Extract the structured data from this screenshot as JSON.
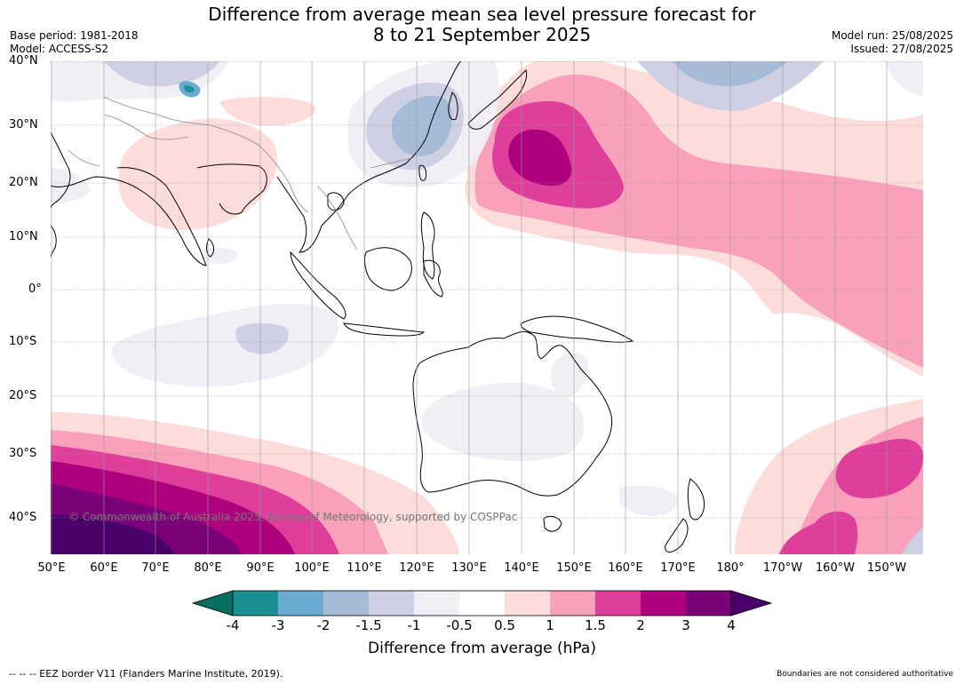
{
  "title": {
    "line1": "Difference from average mean sea level pressure forecast for",
    "line2": "8 to 21 September 2025"
  },
  "meta": {
    "base_period": "Base period: 1981-2018",
    "model": "Model: ACCESS-S2",
    "model_run": "Model run: 25/08/2025",
    "issued": "Issued: 27/08/2025"
  },
  "map": {
    "lat_labels": [
      "40°N",
      "30°N",
      "20°N",
      "10°N",
      "0°",
      "10°S",
      "20°S",
      "30°S",
      "40°S"
    ],
    "lon_labels": [
      "50°E",
      "60°E",
      "70°E",
      "80°E",
      "90°E",
      "100°E",
      "110°E",
      "120°E",
      "130°E",
      "140°E",
      "150°E",
      "160°E",
      "170°E",
      "180°",
      "170°W",
      "160°W",
      "150°W"
    ],
    "watermark": "© Commonwealth of Australia 2025, Bureau of Meteorology, supported by COSPPac"
  },
  "colorbar": {
    "title": "Difference from average (hPa)",
    "ticks": [
      "-4",
      "-3",
      "-2",
      "-1.5",
      "-1",
      "-0.5",
      "0.5",
      "1",
      "1.5",
      "2",
      "3",
      "4"
    ],
    "colors": [
      "#1a9092",
      "#6aabd1",
      "#a6bbd8",
      "#cfd0e4",
      "#f1eef5",
      "#ffffff",
      "#fddcdc",
      "#f9a1ba",
      "#df3f9b",
      "#ae017e",
      "#7a0177"
    ],
    "extend_low": "#076e60",
    "extend_high": "#4a006a"
  },
  "footer": {
    "eez": "--  --  -- EEZ border V11 (Flanders Marine Institute, 2019).",
    "boundaries": "Boundaries are not considered authoritative"
  }
}
